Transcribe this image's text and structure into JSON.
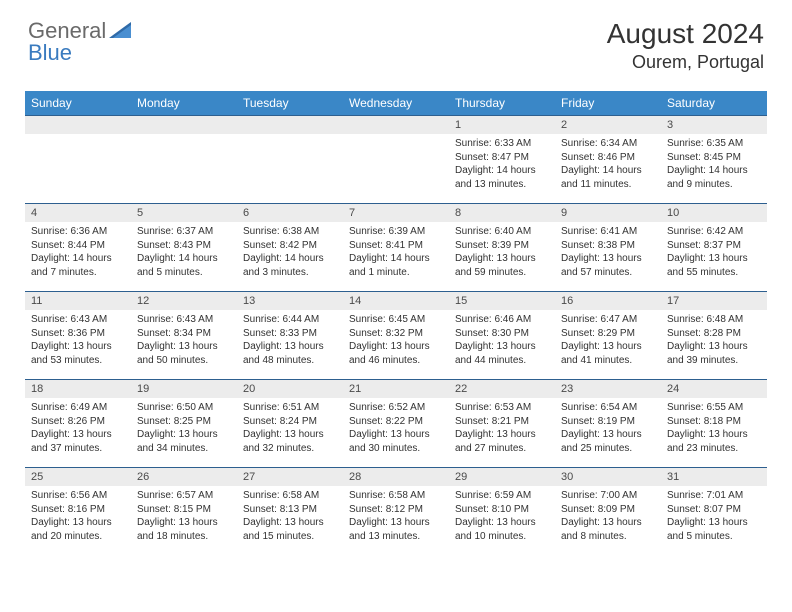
{
  "brand": {
    "part1": "General",
    "part2": "Blue"
  },
  "title": "August 2024",
  "location": "Ourem, Portugal",
  "colors": {
    "header_bg": "#3a87c7",
    "header_text": "#ffffff",
    "date_strip_bg": "#ececec",
    "row_border": "#2d5f8f",
    "body_text": "#323232",
    "logo_gray": "#6a6a6a",
    "logo_blue": "#3a7bbf"
  },
  "day_names": [
    "Sunday",
    "Monday",
    "Tuesday",
    "Wednesday",
    "Thursday",
    "Friday",
    "Saturday"
  ],
  "weeks": [
    [
      null,
      null,
      null,
      null,
      {
        "n": "1",
        "sr": "Sunrise: 6:33 AM",
        "ss": "Sunset: 8:47 PM",
        "d1": "Daylight: 14 hours",
        "d2": "and 13 minutes."
      },
      {
        "n": "2",
        "sr": "Sunrise: 6:34 AM",
        "ss": "Sunset: 8:46 PM",
        "d1": "Daylight: 14 hours",
        "d2": "and 11 minutes."
      },
      {
        "n": "3",
        "sr": "Sunrise: 6:35 AM",
        "ss": "Sunset: 8:45 PM",
        "d1": "Daylight: 14 hours",
        "d2": "and 9 minutes."
      }
    ],
    [
      {
        "n": "4",
        "sr": "Sunrise: 6:36 AM",
        "ss": "Sunset: 8:44 PM",
        "d1": "Daylight: 14 hours",
        "d2": "and 7 minutes."
      },
      {
        "n": "5",
        "sr": "Sunrise: 6:37 AM",
        "ss": "Sunset: 8:43 PM",
        "d1": "Daylight: 14 hours",
        "d2": "and 5 minutes."
      },
      {
        "n": "6",
        "sr": "Sunrise: 6:38 AM",
        "ss": "Sunset: 8:42 PM",
        "d1": "Daylight: 14 hours",
        "d2": "and 3 minutes."
      },
      {
        "n": "7",
        "sr": "Sunrise: 6:39 AM",
        "ss": "Sunset: 8:41 PM",
        "d1": "Daylight: 14 hours",
        "d2": "and 1 minute."
      },
      {
        "n": "8",
        "sr": "Sunrise: 6:40 AM",
        "ss": "Sunset: 8:39 PM",
        "d1": "Daylight: 13 hours",
        "d2": "and 59 minutes."
      },
      {
        "n": "9",
        "sr": "Sunrise: 6:41 AM",
        "ss": "Sunset: 8:38 PM",
        "d1": "Daylight: 13 hours",
        "d2": "and 57 minutes."
      },
      {
        "n": "10",
        "sr": "Sunrise: 6:42 AM",
        "ss": "Sunset: 8:37 PM",
        "d1": "Daylight: 13 hours",
        "d2": "and 55 minutes."
      }
    ],
    [
      {
        "n": "11",
        "sr": "Sunrise: 6:43 AM",
        "ss": "Sunset: 8:36 PM",
        "d1": "Daylight: 13 hours",
        "d2": "and 53 minutes."
      },
      {
        "n": "12",
        "sr": "Sunrise: 6:43 AM",
        "ss": "Sunset: 8:34 PM",
        "d1": "Daylight: 13 hours",
        "d2": "and 50 minutes."
      },
      {
        "n": "13",
        "sr": "Sunrise: 6:44 AM",
        "ss": "Sunset: 8:33 PM",
        "d1": "Daylight: 13 hours",
        "d2": "and 48 minutes."
      },
      {
        "n": "14",
        "sr": "Sunrise: 6:45 AM",
        "ss": "Sunset: 8:32 PM",
        "d1": "Daylight: 13 hours",
        "d2": "and 46 minutes."
      },
      {
        "n": "15",
        "sr": "Sunrise: 6:46 AM",
        "ss": "Sunset: 8:30 PM",
        "d1": "Daylight: 13 hours",
        "d2": "and 44 minutes."
      },
      {
        "n": "16",
        "sr": "Sunrise: 6:47 AM",
        "ss": "Sunset: 8:29 PM",
        "d1": "Daylight: 13 hours",
        "d2": "and 41 minutes."
      },
      {
        "n": "17",
        "sr": "Sunrise: 6:48 AM",
        "ss": "Sunset: 8:28 PM",
        "d1": "Daylight: 13 hours",
        "d2": "and 39 minutes."
      }
    ],
    [
      {
        "n": "18",
        "sr": "Sunrise: 6:49 AM",
        "ss": "Sunset: 8:26 PM",
        "d1": "Daylight: 13 hours",
        "d2": "and 37 minutes."
      },
      {
        "n": "19",
        "sr": "Sunrise: 6:50 AM",
        "ss": "Sunset: 8:25 PM",
        "d1": "Daylight: 13 hours",
        "d2": "and 34 minutes."
      },
      {
        "n": "20",
        "sr": "Sunrise: 6:51 AM",
        "ss": "Sunset: 8:24 PM",
        "d1": "Daylight: 13 hours",
        "d2": "and 32 minutes."
      },
      {
        "n": "21",
        "sr": "Sunrise: 6:52 AM",
        "ss": "Sunset: 8:22 PM",
        "d1": "Daylight: 13 hours",
        "d2": "and 30 minutes."
      },
      {
        "n": "22",
        "sr": "Sunrise: 6:53 AM",
        "ss": "Sunset: 8:21 PM",
        "d1": "Daylight: 13 hours",
        "d2": "and 27 minutes."
      },
      {
        "n": "23",
        "sr": "Sunrise: 6:54 AM",
        "ss": "Sunset: 8:19 PM",
        "d1": "Daylight: 13 hours",
        "d2": "and 25 minutes."
      },
      {
        "n": "24",
        "sr": "Sunrise: 6:55 AM",
        "ss": "Sunset: 8:18 PM",
        "d1": "Daylight: 13 hours",
        "d2": "and 23 minutes."
      }
    ],
    [
      {
        "n": "25",
        "sr": "Sunrise: 6:56 AM",
        "ss": "Sunset: 8:16 PM",
        "d1": "Daylight: 13 hours",
        "d2": "and 20 minutes."
      },
      {
        "n": "26",
        "sr": "Sunrise: 6:57 AM",
        "ss": "Sunset: 8:15 PM",
        "d1": "Daylight: 13 hours",
        "d2": "and 18 minutes."
      },
      {
        "n": "27",
        "sr": "Sunrise: 6:58 AM",
        "ss": "Sunset: 8:13 PM",
        "d1": "Daylight: 13 hours",
        "d2": "and 15 minutes."
      },
      {
        "n": "28",
        "sr": "Sunrise: 6:58 AM",
        "ss": "Sunset: 8:12 PM",
        "d1": "Daylight: 13 hours",
        "d2": "and 13 minutes."
      },
      {
        "n": "29",
        "sr": "Sunrise: 6:59 AM",
        "ss": "Sunset: 8:10 PM",
        "d1": "Daylight: 13 hours",
        "d2": "and 10 minutes."
      },
      {
        "n": "30",
        "sr": "Sunrise: 7:00 AM",
        "ss": "Sunset: 8:09 PM",
        "d1": "Daylight: 13 hours",
        "d2": "and 8 minutes."
      },
      {
        "n": "31",
        "sr": "Sunrise: 7:01 AM",
        "ss": "Sunset: 8:07 PM",
        "d1": "Daylight: 13 hours",
        "d2": "and 5 minutes."
      }
    ]
  ]
}
